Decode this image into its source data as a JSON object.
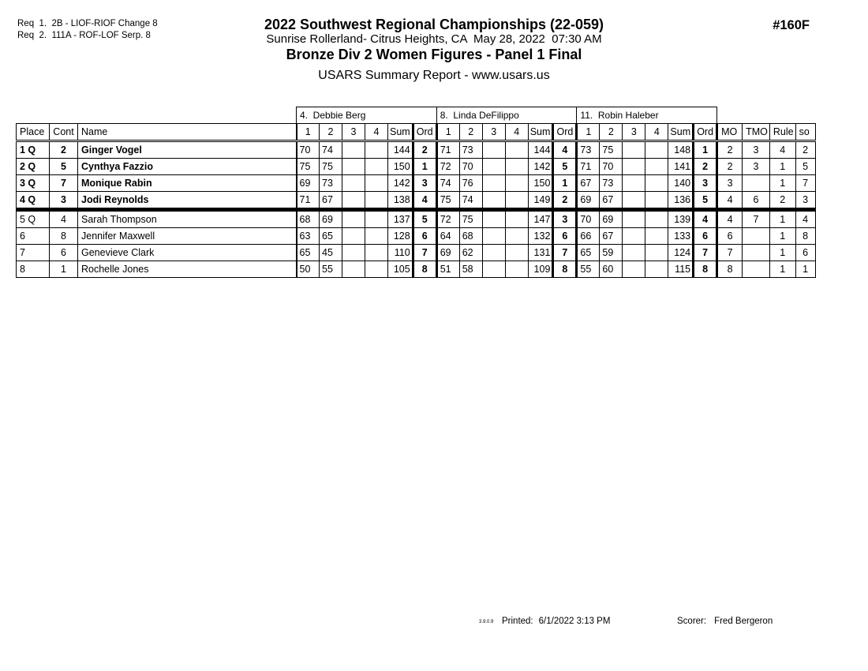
{
  "page": {
    "doc_number": "#160F",
    "requirements": [
      "Req  1.  2B - LIOF-RIOF Change 8",
      "Req  2.  111A - ROF-LOF Serp. 8"
    ],
    "header": {
      "title": "2022 Southwest Regional Championships (22-059)",
      "venue_line": "Sunrise Rollerland- Citrus Heights, CA  May 28, 2022  07:30 AM",
      "event_line": "Bronze Div 2 Women Figures - Panel 1 Final",
      "report_line": "USARS Summary Report - www.usars.us"
    },
    "footer": {
      "version": "3.9.0.9",
      "printed_label": "Printed:",
      "printed_value": "6/1/2022  3:13 PM",
      "scorer_label": "Scorer:",
      "scorer_value": "Fred Bergeron"
    }
  },
  "table": {
    "judges": [
      "4.  Debbie Berg",
      "8.  Linda DeFilippo",
      "11.  Robin Haleber"
    ],
    "left_headers": [
      "Place",
      "Cont",
      "Name"
    ],
    "judge_headers": [
      "1",
      "2",
      "3",
      "4",
      "Sum",
      "Ord"
    ],
    "right_headers": [
      "MO",
      "TMO",
      "Rule",
      "so"
    ],
    "rows": [
      {
        "place": "1 Q",
        "cont": "2",
        "name": "Ginger Vogel",
        "bold": true,
        "judges": [
          {
            "s1": "70",
            "s2": "74",
            "s3": "",
            "s4": "",
            "sum": "144",
            "ord": "2"
          },
          {
            "s1": "71",
            "s2": "73",
            "s3": "",
            "s4": "",
            "sum": "144",
            "ord": "4"
          },
          {
            "s1": "73",
            "s2": "75",
            "s3": "",
            "s4": "",
            "sum": "148",
            "ord": "1"
          }
        ],
        "mo": "2",
        "tmo": "3",
        "rule": "4",
        "so": "2"
      },
      {
        "place": "2 Q",
        "cont": "5",
        "name": "Cynthya Fazzio",
        "bold": true,
        "judges": [
          {
            "s1": "75",
            "s2": "75",
            "s3": "",
            "s4": "",
            "sum": "150",
            "ord": "1"
          },
          {
            "s1": "72",
            "s2": "70",
            "s3": "",
            "s4": "",
            "sum": "142",
            "ord": "5"
          },
          {
            "s1": "71",
            "s2": "70",
            "s3": "",
            "s4": "",
            "sum": "141",
            "ord": "2"
          }
        ],
        "mo": "2",
        "tmo": "3",
        "rule": "1",
        "so": "5"
      },
      {
        "place": "3 Q",
        "cont": "7",
        "name": "Monique Rabin",
        "bold": true,
        "judges": [
          {
            "s1": "69",
            "s2": "73",
            "s3": "",
            "s4": "",
            "sum": "142",
            "ord": "3"
          },
          {
            "s1": "74",
            "s2": "76",
            "s3": "",
            "s4": "",
            "sum": "150",
            "ord": "1"
          },
          {
            "s1": "67",
            "s2": "73",
            "s3": "",
            "s4": "",
            "sum": "140",
            "ord": "3"
          }
        ],
        "mo": "3",
        "tmo": "",
        "rule": "1",
        "so": "7"
      },
      {
        "place": "4 Q",
        "cont": "3",
        "name": "Jodi Reynolds",
        "bold": true,
        "judges": [
          {
            "s1": "71",
            "s2": "67",
            "s3": "",
            "s4": "",
            "sum": "138",
            "ord": "4"
          },
          {
            "s1": "75",
            "s2": "74",
            "s3": "",
            "s4": "",
            "sum": "149",
            "ord": "2"
          },
          {
            "s1": "69",
            "s2": "67",
            "s3": "",
            "s4": "",
            "sum": "136",
            "ord": "5"
          }
        ],
        "mo": "4",
        "tmo": "6",
        "rule": "2",
        "so": "3"
      },
      {
        "place": "5 Q",
        "cont": "4",
        "name": "Sarah Thompson",
        "bold": false,
        "judges": [
          {
            "s1": "68",
            "s2": "69",
            "s3": "",
            "s4": "",
            "sum": "137",
            "ord": "5"
          },
          {
            "s1": "72",
            "s2": "75",
            "s3": "",
            "s4": "",
            "sum": "147",
            "ord": "3"
          },
          {
            "s1": "70",
            "s2": "69",
            "s3": "",
            "s4": "",
            "sum": "139",
            "ord": "4"
          }
        ],
        "mo": "4",
        "tmo": "7",
        "rule": "1",
        "so": "4"
      },
      {
        "place": "6",
        "cont": "8",
        "name": "Jennifer Maxwell",
        "bold": false,
        "judges": [
          {
            "s1": "63",
            "s2": "65",
            "s3": "",
            "s4": "",
            "sum": "128",
            "ord": "6"
          },
          {
            "s1": "64",
            "s2": "68",
            "s3": "",
            "s4": "",
            "sum": "132",
            "ord": "6"
          },
          {
            "s1": "66",
            "s2": "67",
            "s3": "",
            "s4": "",
            "sum": "133",
            "ord": "6"
          }
        ],
        "mo": "6",
        "tmo": "",
        "rule": "1",
        "so": "8"
      },
      {
        "place": "7",
        "cont": "6",
        "name": "Genevieve Clark",
        "bold": false,
        "judges": [
          {
            "s1": "65",
            "s2": "45",
            "s3": "",
            "s4": "",
            "sum": "110",
            "ord": "7"
          },
          {
            "s1": "69",
            "s2": "62",
            "s3": "",
            "s4": "",
            "sum": "131",
            "ord": "7"
          },
          {
            "s1": "65",
            "s2": "59",
            "s3": "",
            "s4": "",
            "sum": "124",
            "ord": "7"
          }
        ],
        "mo": "7",
        "tmo": "",
        "rule": "1",
        "so": "6"
      },
      {
        "place": "8",
        "cont": "1",
        "name": "Rochelle Jones",
        "bold": false,
        "judges": [
          {
            "s1": "50",
            "s2": "55",
            "s3": "",
            "s4": "",
            "sum": "105",
            "ord": "8"
          },
          {
            "s1": "51",
            "s2": "58",
            "s3": "",
            "s4": "",
            "sum": "109",
            "ord": "8"
          },
          {
            "s1": "55",
            "s2": "60",
            "s3": "",
            "s4": "",
            "sum": "115",
            "ord": "8"
          }
        ],
        "mo": "8",
        "tmo": "",
        "rule": "1",
        "so": "1"
      }
    ]
  }
}
